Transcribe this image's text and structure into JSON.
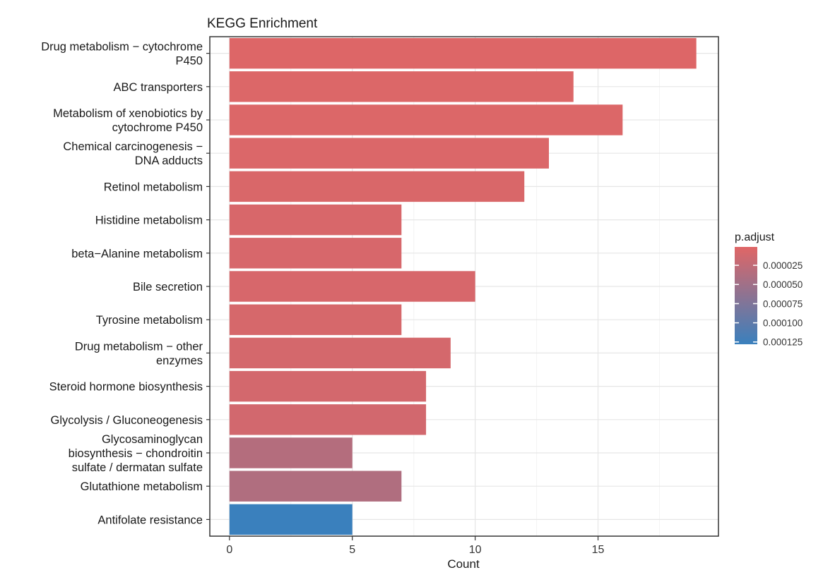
{
  "chart_data": {
    "type": "bar",
    "orientation": "horizontal",
    "title": "KEGG Enrichment",
    "xlabel": "Count",
    "ylabel": "",
    "xlim": [
      -0.8,
      19.9
    ],
    "xticks": [
      0,
      5,
      10,
      15
    ],
    "grid": true,
    "categories": [
      "Drug metabolism − cytochrome P450",
      "ABC transporters",
      "Metabolism of xenobiotics by cytochrome P450",
      "Chemical carcinogenesis − DNA adducts",
      "Retinol metabolism",
      "Histidine metabolism",
      "beta−Alanine metabolism",
      "Bile secretion",
      "Tyrosine metabolism",
      "Drug metabolism − other enzymes",
      "Steroid hormone biosynthesis",
      "Glycolysis / Gluconeogenesis",
      "Glycosaminoglycan biosynthesis − chondroitin sulfate / dermatan sulfate",
      "Glutathione metabolism",
      "Antifolate resistance"
    ],
    "category_lines": [
      [
        "Drug metabolism − cytochrome",
        "P450"
      ],
      [
        "ABC transporters"
      ],
      [
        "Metabolism of xenobiotics by",
        "cytochrome P450"
      ],
      [
        "Chemical carcinogenesis −",
        "DNA adducts"
      ],
      [
        "Retinol metabolism"
      ],
      [
        "Histidine metabolism"
      ],
      [
        "beta−Alanine metabolism"
      ],
      [
        "Bile secretion"
      ],
      [
        "Tyrosine metabolism"
      ],
      [
        "Drug metabolism − other",
        "enzymes"
      ],
      [
        "Steroid hormone biosynthesis"
      ],
      [
        "Glycolysis / Gluconeogenesis"
      ],
      [
        "Glycosaminoglycan",
        "biosynthesis − chondroitin",
        "sulfate / dermatan sulfate"
      ],
      [
        "Glutathione metabolism"
      ],
      [
        "Antifolate resistance"
      ]
    ],
    "values": [
      19,
      14,
      16,
      13,
      12,
      7,
      7,
      10,
      7,
      9,
      8,
      8,
      5,
      7,
      5
    ],
    "p_adjust": [
      3e-06,
      4e-06,
      4e-06,
      5e-06,
      6e-06,
      7e-06,
      8e-06,
      8e-06,
      9e-06,
      1e-05,
      1.1e-05,
      1.2e-05,
      3.5e-05,
      3.8e-05,
      0.000128
    ],
    "legend": {
      "title": "p.adjust",
      "placement": "right",
      "ticks": [
        2.5e-05,
        5e-05,
        7.5e-05,
        0.0001,
        0.000125
      ],
      "tick_labels": [
        "0.000025",
        "0.000050",
        "0.000075",
        "0.000100",
        "0.000125"
      ],
      "range": [
        1e-06,
        0.000128
      ],
      "color_low": "#e06666",
      "color_high": "#3a80bd"
    }
  }
}
